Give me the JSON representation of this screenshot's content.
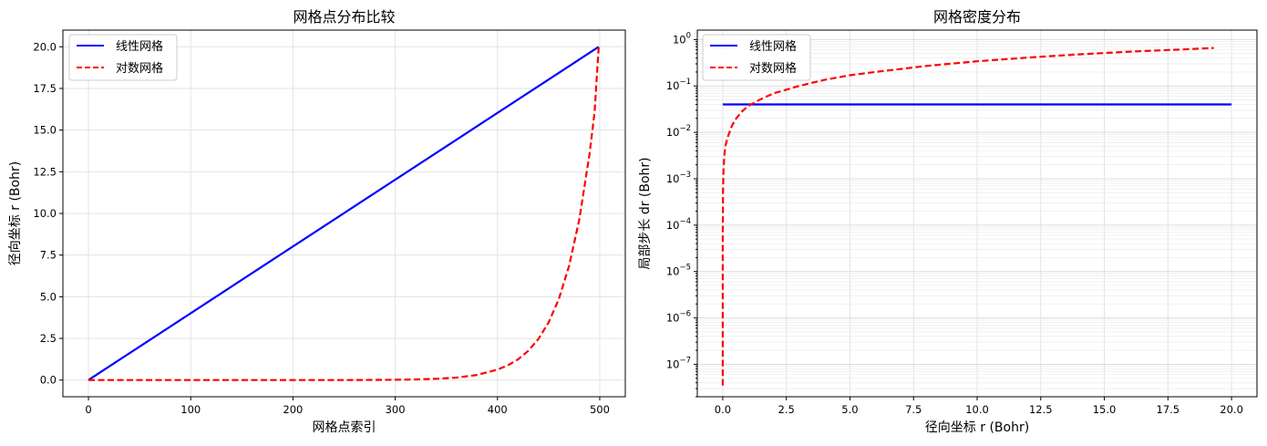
{
  "chart_data": [
    {
      "type": "line",
      "title": "网格点分布比较",
      "xlabel": "网格点索引",
      "ylabel": "径向坐标 r (Bohr)",
      "xlim": [
        -25,
        525
      ],
      "ylim": [
        -1.0,
        21.0
      ],
      "xticks": [
        0,
        100,
        200,
        300,
        400,
        500
      ],
      "yticks": [
        0.0,
        2.5,
        5.0,
        7.5,
        10.0,
        12.5,
        15.0,
        17.5,
        20.0
      ],
      "xtick_labels": [
        "0",
        "100",
        "200",
        "300",
        "400",
        "500"
      ],
      "ytick_labels": [
        "0.0",
        "2.5",
        "5.0",
        "7.5",
        "10.0",
        "12.5",
        "15.0",
        "17.5",
        "20.0"
      ],
      "grid": true,
      "legend": "upper left",
      "series": [
        {
          "name": "线性网格",
          "color": "#0000ff",
          "style": "solid",
          "x": [
            0,
            499
          ],
          "y": [
            0.0,
            20.0
          ]
        },
        {
          "name": "对数网格",
          "color": "#ff0000",
          "style": "dashed",
          "x": [
            0,
            50,
            100,
            150,
            200,
            250,
            300,
            320,
            340,
            360,
            380,
            400,
            410,
            420,
            430,
            440,
            450,
            460,
            470,
            480,
            490,
            495,
            499
          ],
          "y": [
            0.0,
            0.0,
            0.0,
            0.0,
            0.0,
            0.0,
            0.02,
            0.04,
            0.08,
            0.15,
            0.31,
            0.63,
            0.88,
            1.24,
            1.75,
            2.46,
            3.46,
            4.86,
            6.84,
            9.62,
            13.54,
            16.07,
            20.0
          ]
        }
      ]
    },
    {
      "type": "line",
      "title": "网格密度分布",
      "xlabel": "径向坐标 r (Bohr)",
      "ylabel": "局部步长 dr (Bohr)",
      "xlim": [
        -1.0,
        21.0
      ],
      "ylim": [
        2e-08,
        1.6
      ],
      "yscale": "log",
      "xticks": [
        0.0,
        2.5,
        5.0,
        7.5,
        10.0,
        12.5,
        15.0,
        17.5,
        20.0
      ],
      "xtick_labels": [
        "0.0",
        "2.5",
        "5.0",
        "7.5",
        "10.0",
        "12.5",
        "15.0",
        "17.5",
        "20.0"
      ],
      "ytick_labels": [
        {
          "base": "10",
          "exp": "0",
          "value": 1
        },
        {
          "base": "10",
          "exp": "−1",
          "value": 0.1
        },
        {
          "base": "10",
          "exp": "−2",
          "value": 0.01
        },
        {
          "base": "10",
          "exp": "−3",
          "value": 0.001
        },
        {
          "base": "10",
          "exp": "−4",
          "value": 0.0001
        },
        {
          "base": "10",
          "exp": "−5",
          "value": 1e-05
        },
        {
          "base": "10",
          "exp": "−6",
          "value": 1e-06
        },
        {
          "base": "10",
          "exp": "−7",
          "value": 1e-07
        }
      ],
      "grid": true,
      "legend": "upper left",
      "series": [
        {
          "name": "线性网格",
          "color": "#0000ff",
          "style": "solid",
          "x": [
            0.0,
            20.0
          ],
          "y": [
            0.04,
            0.04
          ]
        },
        {
          "name": "对数网格",
          "color": "#ff0000",
          "style": "dashed",
          "x": [
            0.0,
            0.0001,
            0.001,
            0.01,
            0.03,
            0.06,
            0.1,
            0.2,
            0.35,
            0.5,
            0.75,
            1.0,
            1.5,
            2.0,
            3.0,
            4.0,
            5.0,
            6.0,
            8.0,
            10.0,
            12.0,
            14.0,
            16.0,
            18.0,
            19.3
          ],
          "y": [
            3.5e-08,
            1.3e-06,
            4e-05,
            0.0005,
            0.0015,
            0.003,
            0.005,
            0.008,
            0.0135,
            0.019,
            0.028,
            0.037,
            0.052,
            0.069,
            0.1,
            0.135,
            0.17,
            0.2,
            0.27,
            0.34,
            0.41,
            0.48,
            0.55,
            0.61,
            0.66
          ]
        }
      ]
    }
  ]
}
